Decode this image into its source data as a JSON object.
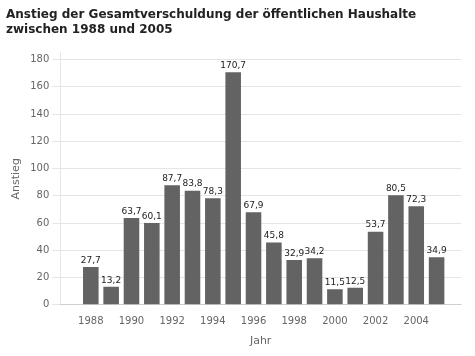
{
  "chart_data": {
    "type": "bar",
    "title": [
      "Anstieg der Gesamtverschuldung der öffentlichen Haushalte",
      "zwischen 1988 und 2005"
    ],
    "x_label": "Jahr",
    "y_label": "Anstieg",
    "x": [
      1988,
      1989,
      1990,
      1991,
      1992,
      1993,
      1994,
      1995,
      1996,
      1997,
      1998,
      1999,
      2000,
      2001,
      2002,
      2003,
      2004,
      2005
    ],
    "values": [
      27.7,
      13.2,
      63.7,
      60.1,
      87.7,
      83.8,
      78.3,
      170.7,
      67.9,
      45.8,
      32.9,
      34.2,
      11.5,
      12.5,
      53.7,
      80.5,
      72.3,
      34.9
    ],
    "value_labels": [
      "27,7",
      "13,2",
      "63,7",
      "60,1",
      "87,7",
      "83,8",
      "78,3",
      "170,7",
      "67,9",
      "45,8",
      "32,9",
      "34,2",
      "11,5",
      "12,5",
      "53,7",
      "80,5",
      "72,3",
      "34,9"
    ],
    "data_labels": true,
    "color": "#636363",
    "xlim": [
      1986.5,
      2006.2
    ],
    "xticks": [
      1988,
      1990,
      1992,
      1994,
      1996,
      1998,
      2000,
      2002,
      2004
    ],
    "ylim": [
      0,
      185
    ],
    "yticks": [
      0,
      20,
      40,
      60,
      80,
      100,
      120,
      140,
      160,
      180
    ],
    "grid": true
  }
}
